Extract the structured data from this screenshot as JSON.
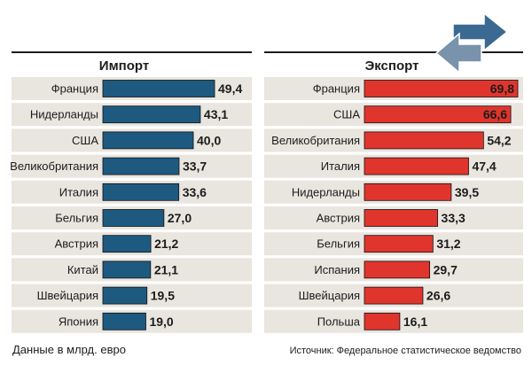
{
  "colors": {
    "import_bar": "#1e5a80",
    "export_bar": "#e0352d",
    "row_bg": "#e9e5df",
    "rule": "#1c1c1c",
    "arrow": "#3a6a92"
  },
  "icons": [
    "trade-arrows-icon"
  ],
  "footnote": "Данные в млрд. евро",
  "source": "Источник: Федеральное статистическое ведомство",
  "chart_data": [
    {
      "type": "bar",
      "title": "Импорт",
      "orientation": "horizontal",
      "categories": [
        "Франция",
        "Нидерланды",
        "США",
        "Великобритания",
        "Италия",
        "Бельгия",
        "Австрия",
        "Китай",
        "Швейцария",
        "Япония"
      ],
      "values": [
        49.4,
        43.1,
        40.0,
        33.7,
        33.6,
        27.0,
        21.2,
        21.1,
        19.5,
        19.0
      ],
      "value_labels": [
        "49,4",
        "43,1",
        "40,0",
        "33,7",
        "33,6",
        "27,0",
        "21,2",
        "21,1",
        "19,5",
        "19,0"
      ],
      "xlabel": "",
      "ylabel": "",
      "grid": false
    },
    {
      "type": "bar",
      "title": "Экспорт",
      "orientation": "horizontal",
      "categories": [
        "Франция",
        "США",
        "Великобритания",
        "Италия",
        "Нидерланды",
        "Австрия",
        "Бельгия",
        "Испания",
        "Швейцария",
        "Польша"
      ],
      "values": [
        69.8,
        66.6,
        54.2,
        47.4,
        39.5,
        33.3,
        31.2,
        29.7,
        26.6,
        16.1
      ],
      "value_labels": [
        "69,8",
        "66,6",
        "54,2",
        "47,4",
        "39,5",
        "33,3",
        "31,2",
        "29,7",
        "26,6",
        "16,1"
      ],
      "xlabel": "",
      "ylabel": "",
      "grid": false
    }
  ]
}
